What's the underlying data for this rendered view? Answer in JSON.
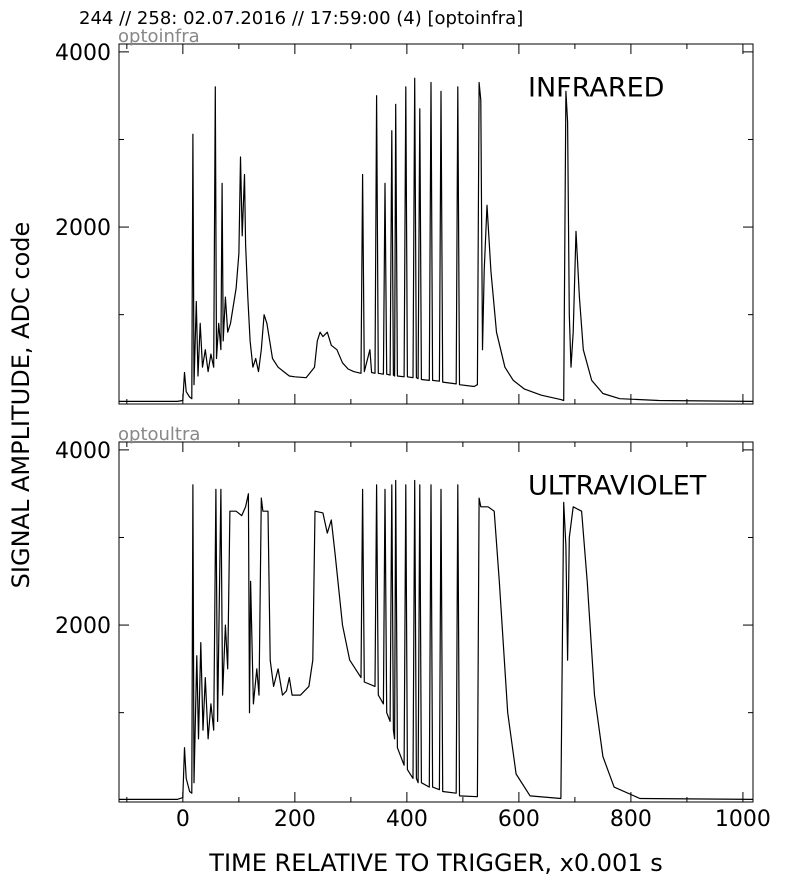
{
  "title": "244 // 258:   02.07.2016 // 17:59:00 (4)  [optoinfra]",
  "chart_data": [
    {
      "type": "line",
      "title": "INFRARED",
      "label": "optoinfra",
      "ylabel": "SIGNAL AMPLITUDE,  ADC code",
      "color": "#000000",
      "xlim": [
        -114,
        1018
      ],
      "ylim": [
        -20,
        4090
      ],
      "xticks": [
        0,
        200,
        400,
        600,
        800,
        1000
      ],
      "xminor": [
        -100,
        100,
        300,
        500,
        700,
        900
      ],
      "yticks": [
        2000,
        4000
      ],
      "yminor": [
        1000,
        3000
      ],
      "show_xtick_labels": false,
      "x": [
        -114,
        -10,
        0,
        3,
        6,
        12,
        16,
        18,
        20,
        24,
        27,
        31,
        35,
        40,
        45,
        50,
        55,
        58,
        60,
        64,
        68,
        70,
        72,
        76,
        80,
        85,
        90,
        95,
        100,
        103,
        106,
        110,
        112,
        116,
        120,
        125,
        130,
        135,
        140,
        145,
        150,
        155,
        160,
        170,
        180,
        190,
        200,
        220,
        235,
        240,
        245,
        250,
        258,
        265,
        275,
        285,
        295,
        305,
        318,
        321,
        324,
        334,
        337,
        343,
        346,
        349,
        358,
        361,
        364,
        370,
        373,
        376,
        378,
        380,
        383,
        395,
        398,
        401,
        411,
        414,
        417,
        420,
        423,
        426,
        440,
        443,
        446,
        458,
        461,
        464,
        488,
        491,
        494,
        520,
        526,
        529,
        532,
        535,
        538,
        543,
        550,
        560,
        575,
        590,
        610,
        640,
        675,
        680,
        684,
        687,
        690,
        693,
        697,
        702,
        708,
        715,
        730,
        750,
        780,
        850,
        1018
      ],
      "values": [
        10,
        10,
        20,
        340,
        120,
        60,
        40,
        3060,
        200,
        1150,
        300,
        900,
        400,
        600,
        350,
        550,
        400,
        3600,
        500,
        900,
        600,
        2500,
        700,
        1200,
        800,
        900,
        1100,
        1300,
        1700,
        2800,
        1900,
        2600,
        1800,
        1200,
        700,
        400,
        500,
        350,
        600,
        1000,
        900,
        700,
        500,
        400,
        350,
        300,
        290,
        280,
        400,
        700,
        800,
        750,
        800,
        650,
        600,
        450,
        380,
        350,
        330,
        2600,
        350,
        600,
        340,
        330,
        3500,
        330,
        320,
        2500,
        320,
        310,
        3100,
        310,
        300,
        3400,
        300,
        290,
        3600,
        290,
        280,
        3700,
        280,
        270,
        3350,
        260,
        250,
        3650,
        250,
        240,
        3550,
        230,
        210,
        3600,
        200,
        180,
        200,
        3650,
        3450,
        600,
        1500,
        2250,
        1500,
        800,
        400,
        250,
        150,
        80,
        30,
        20,
        3550,
        3200,
        1000,
        400,
        800,
        1950,
        1200,
        600,
        250,
        100,
        40,
        20,
        10
      ]
    },
    {
      "type": "line",
      "title": "ULTRAVIOLET",
      "label": "optoultra",
      "xlabel": "TIME RELATIVE TO TRIGGER,   x0.001 s",
      "color": "#000000",
      "xlim": [
        -114,
        1018
      ],
      "ylim": [
        -20,
        4090
      ],
      "xticks": [
        0,
        200,
        400,
        600,
        800,
        1000
      ],
      "xminor": [
        -100,
        100,
        300,
        500,
        700,
        900
      ],
      "yticks": [
        2000,
        4000
      ],
      "yminor": [
        1000,
        3000
      ],
      "show_xtick_labels": true,
      "x": [
        -114,
        -10,
        0,
        3,
        6,
        12,
        16,
        18,
        20,
        25,
        28,
        32,
        36,
        40,
        45,
        50,
        55,
        59,
        62,
        68,
        71,
        76,
        80,
        84,
        95,
        105,
        112,
        117,
        119,
        121,
        126,
        132,
        136,
        140,
        143,
        152,
        156,
        162,
        170,
        178,
        185,
        190,
        195,
        210,
        225,
        232,
        236,
        250,
        258,
        265,
        272,
        285,
        298,
        318,
        321,
        324,
        343,
        346,
        349,
        358,
        361,
        364,
        370,
        373,
        376,
        378,
        380,
        383,
        395,
        398,
        401,
        411,
        414,
        417,
        420,
        423,
        426,
        440,
        443,
        446,
        458,
        461,
        464,
        488,
        491,
        494,
        526,
        529,
        532,
        545,
        556,
        565,
        580,
        595,
        620,
        675,
        680,
        684,
        687,
        690,
        697,
        712,
        722,
        735,
        750,
        770,
        816,
        1018
      ],
      "values": [
        10,
        10,
        30,
        600,
        250,
        100,
        80,
        3600,
        200,
        1650,
        700,
        1800,
        800,
        1400,
        700,
        1100,
        800,
        3550,
        900,
        3550,
        1200,
        2000,
        1500,
        3300,
        3300,
        3250,
        3350,
        3500,
        1000,
        2500,
        1100,
        1500,
        1200,
        3450,
        3300,
        3300,
        1600,
        1300,
        1500,
        1200,
        1250,
        1400,
        1200,
        1200,
        1300,
        1600,
        3300,
        3280,
        3050,
        3200,
        2800,
        2000,
        1600,
        1400,
        3550,
        1350,
        1300,
        3600,
        1200,
        1100,
        3550,
        1000,
        900,
        3600,
        800,
        700,
        3650,
        600,
        400,
        3600,
        350,
        250,
        3650,
        250,
        200,
        3600,
        200,
        150,
        3600,
        150,
        120,
        3550,
        100,
        80,
        3600,
        50,
        40,
        3450,
        3350,
        3350,
        3300,
        2500,
        1000,
        300,
        50,
        20,
        3400,
        2900,
        1600,
        3000,
        3350,
        3300,
        2500,
        1200,
        500,
        150,
        20,
        10
      ]
    }
  ]
}
